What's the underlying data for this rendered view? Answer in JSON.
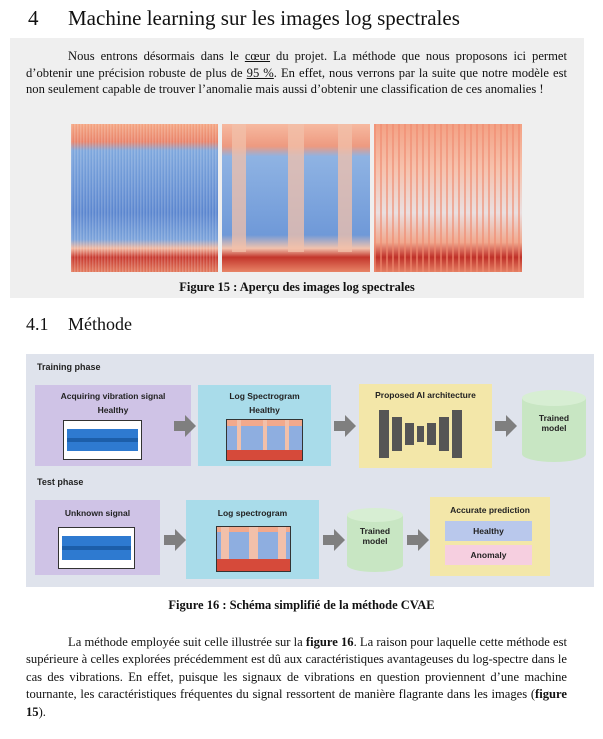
{
  "section": {
    "number": "4",
    "title": "Machine learning sur les images log spectrales"
  },
  "intro": {
    "p1": "Nous entrons désormais dans le ",
    "coeur": "cœur",
    "p2": " du projet. La méthode que nous proposons ici permet d’obtenir une précision robuste de plus de ",
    "pct": "95 %",
    "p3": ". En effet, nous verrons par la suite que notre modèle est non seulement capable de trouver l’anomalie mais aussi d’obtenir une classification de ces anomalies !"
  },
  "figure15": {
    "caption": "Figure 15 : Aperçu des images log spectrales"
  },
  "subsection": {
    "number": "4.1",
    "title": "Méthode"
  },
  "diagram": {
    "training_label": "Training phase",
    "test_label": "Test phase",
    "train_signal_title": "Acquiring vibration signal",
    "train_signal_sub": "Healthy",
    "train_spec_title": "Log Spectrogram",
    "train_spec_sub": "Healthy",
    "ai_title": "Proposed AI architecture",
    "trained_model_1": "Trained model",
    "test_signal_title": "Unknown signal",
    "test_spec_title": "Log spectrogram",
    "trained_model_2": "Trained model",
    "prediction_title": "Accurate prediction",
    "pred_healthy": "Healthy",
    "pred_anomaly": "Anomaly",
    "colors": {
      "purple": "#cfc3e6",
      "cyan": "#a9dcea",
      "yellow": "#f3e7a9",
      "green": "#c8e6c3",
      "healthy": "#b9c8ec",
      "anomaly": "#f6cfe0",
      "arrow": "#7f7f7f"
    }
  },
  "figure16": {
    "caption": "Figure 16 : Schéma simplifié de la méthode CVAE"
  },
  "body": {
    "a": "La méthode employée suit celle illustrée sur la ",
    "ref16": "figure 16",
    "b": ". La raison pour laquelle cette méthode est supérieure à celles explorées précédemment est dû aux caractéristiques avantageuses du log-spectre dans le cas des vibrations. En effet, puisque les signaux de vibrations en question proviennent d’une machine tournante, les caractéristiques fréquentes du signal ressortent de manière flagrante dans les images (",
    "ref15": "figure 15",
    "c": ")."
  }
}
